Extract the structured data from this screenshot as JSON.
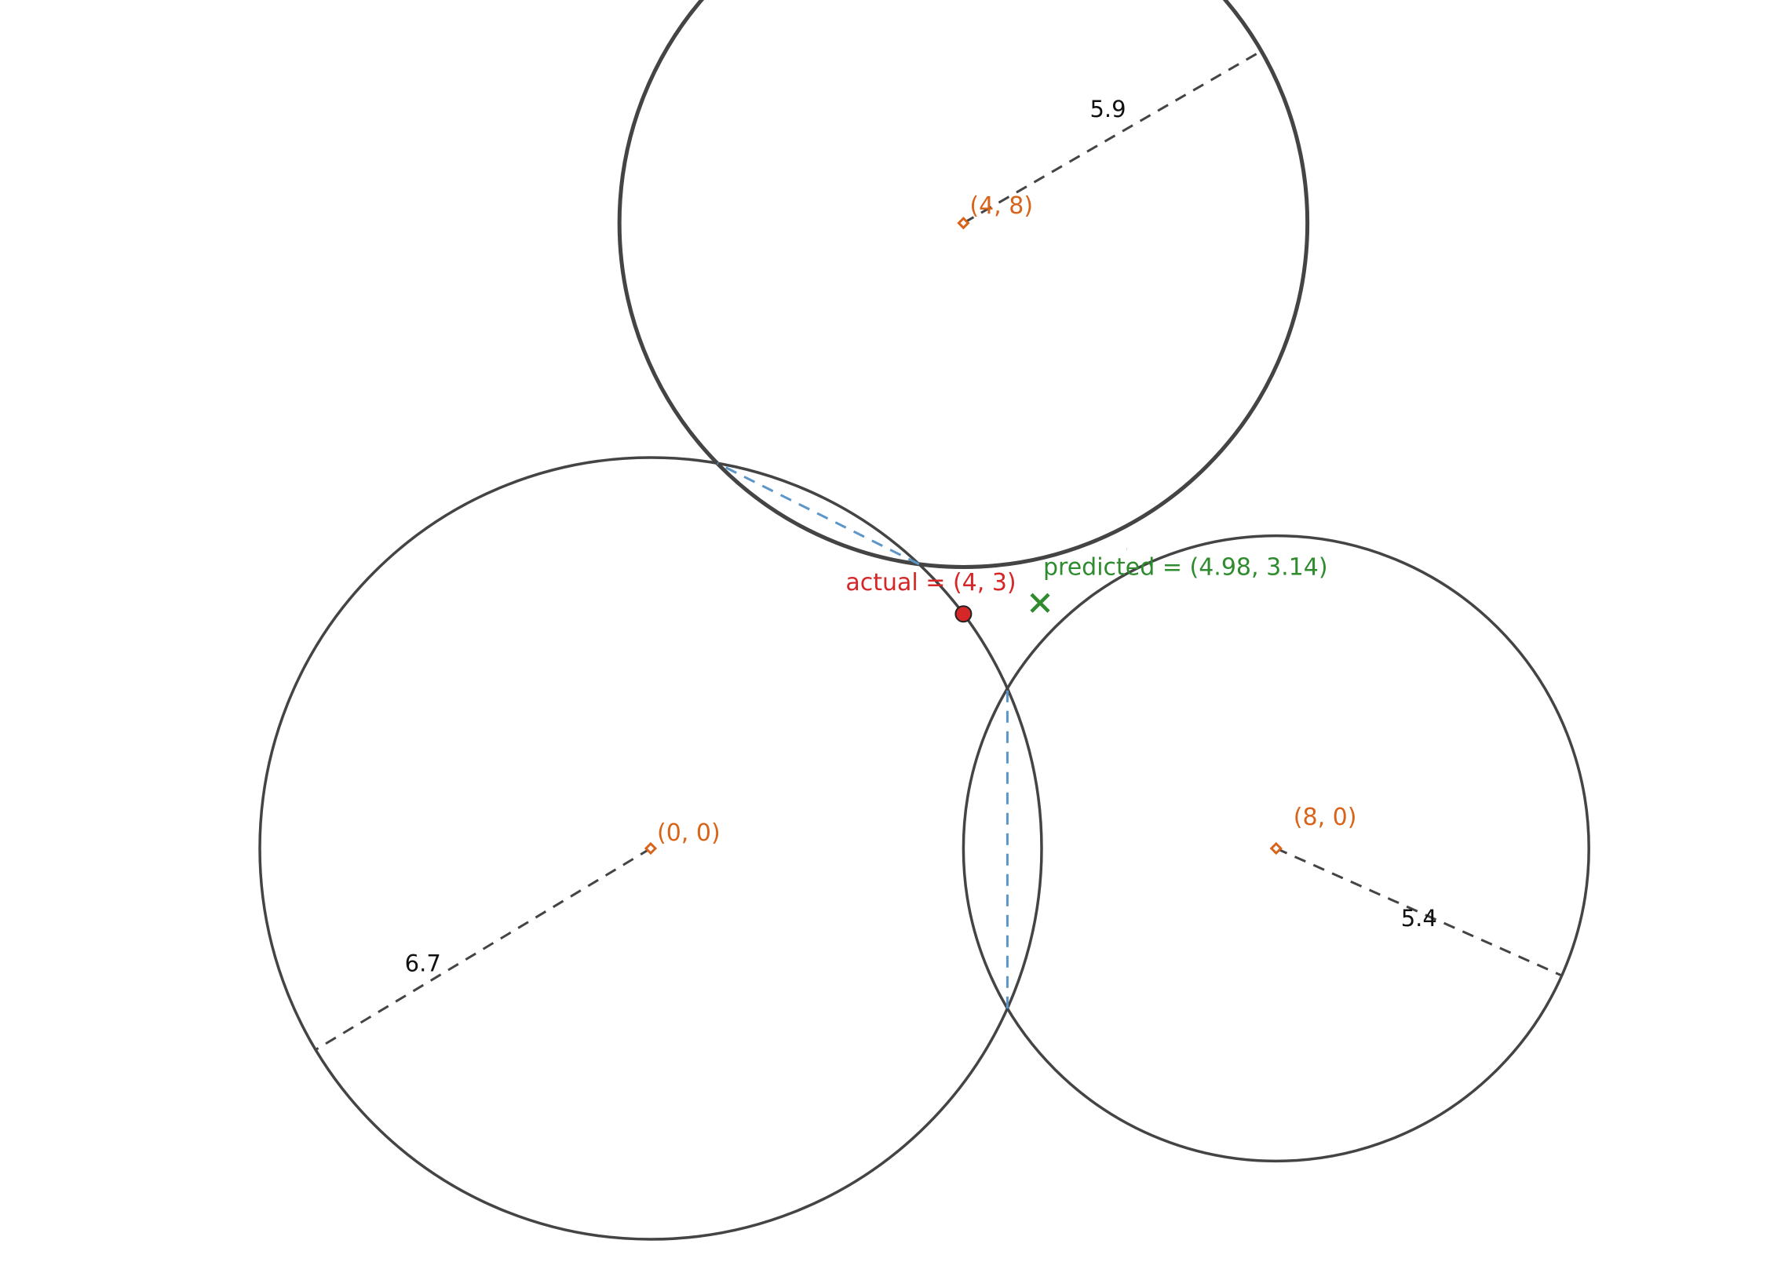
{
  "chart_data": {
    "type": "trilateration",
    "anchors": [
      {
        "name": "anchor-0-0",
        "label": "(0, 0)",
        "x": 0,
        "y": 0,
        "radius": 5.0,
        "radius_label": "6.7",
        "bold": false
      },
      {
        "name": "anchor-8-0",
        "label": "(8, 0)",
        "x": 8,
        "y": 0,
        "radius": 4.0,
        "radius_label": "5.4",
        "bold": false
      },
      {
        "name": "anchor-4-8",
        "label": "(4, 8)",
        "x": 4,
        "y": 8,
        "radius": 4.4,
        "radius_label": "5.9",
        "bold": true
      }
    ],
    "actual": {
      "x": 4,
      "y": 3,
      "label": "actual = (4, 3)"
    },
    "predicted": {
      "x": 4.98,
      "y": 3.14,
      "label": "predicted = (4.98, 3.14)"
    },
    "colors": {
      "anchor": "#d8641a",
      "actual": "#d62728",
      "predicted": "#2e8b2e",
      "circle": "#444444",
      "chord": "#5b96c8"
    }
  }
}
